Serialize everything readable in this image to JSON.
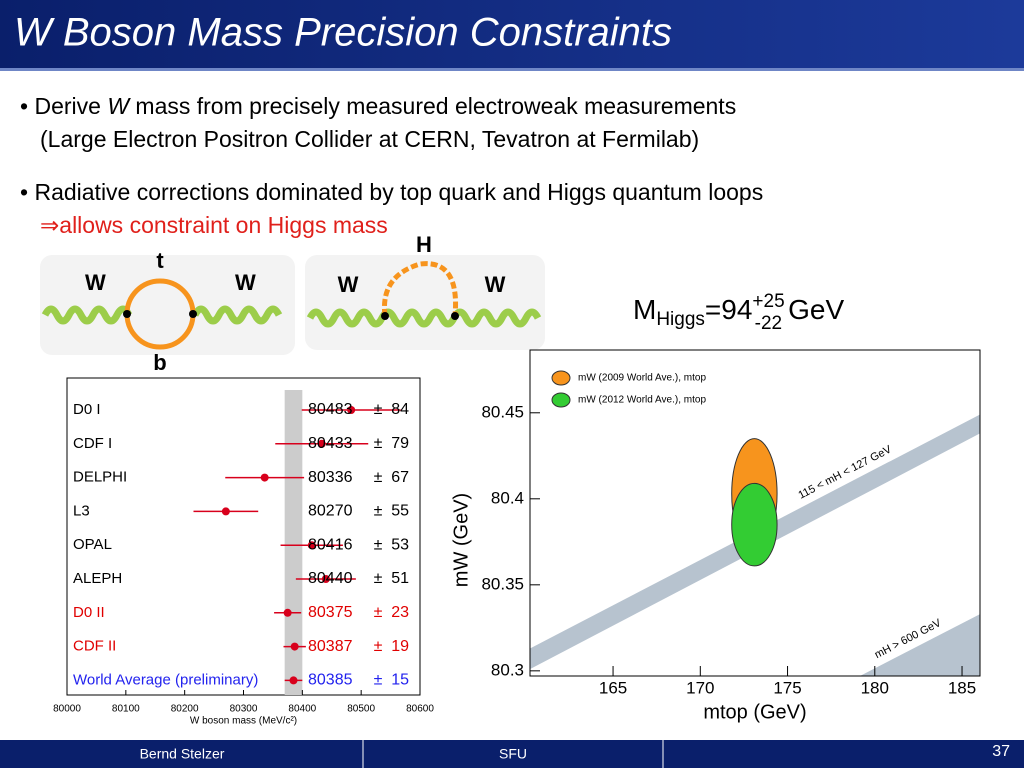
{
  "title": "W Boson Mass Precision Constraints",
  "bullets": [
    {
      "parts": [
        "Derive ",
        "W",
        " mass from precisely measured electroweak measurements"
      ],
      "line2": "(Large Electron Positron Collider at CERN, Tevatron at Fermilab)"
    },
    {
      "parts": [
        "Radiative corrections dominated by top quark and Higgs quantum loops"
      ],
      "line2": "⇒allows constraint on Higgs mass"
    }
  ],
  "diagrams": {
    "left": {
      "boson": "W",
      "top": "t",
      "bottom": "b"
    },
    "right": {
      "boson": "W",
      "loop": "H"
    }
  },
  "result": {
    "symbol": "M",
    "subscript": "Higgs",
    "equals": "=",
    "value": 94,
    "plus": "+25",
    "minus": "-22",
    "unit": "GeV"
  },
  "footer": {
    "author": "Bernd Stelzer",
    "institution": "SFU",
    "page": 37
  },
  "chart_data": [
    {
      "type": "errorbar",
      "categories": [
        "D0 I",
        "CDF I",
        "DELPHI",
        "L3",
        "OPAL",
        "ALEPH",
        "D0 II",
        "CDF II",
        "World Average (preliminary)"
      ],
      "values": [
        80483,
        80433,
        80336,
        80270,
        80416,
        80440,
        80375,
        80387,
        80385
      ],
      "errors": [
        84,
        79,
        67,
        55,
        53,
        51,
        23,
        19,
        15
      ],
      "separator": "±",
      "label_colors": [
        "#000000",
        "#000000",
        "#000000",
        "#000000",
        "#000000",
        "#000000",
        "#e00000",
        "#e00000",
        "#2222ee"
      ],
      "marker_color": "#d8001c",
      "xlim": [
        80000,
        80600
      ],
      "xticks": [
        80000,
        80100,
        80200,
        80300,
        80400,
        80500,
        80600
      ],
      "xlabel": "W boson mass (MeV/c²)"
    },
    {
      "type": "contour",
      "series": [
        {
          "name": "mW (2009 World Ave.), mtop",
          "color": "#f7941d",
          "x": 173.1,
          "y": 80.403,
          "x_radius": 1.3,
          "y_radius": 0.032
        },
        {
          "name": "mW (2012 World Ave.), mtop",
          "color": "#33cc33",
          "x": 173.1,
          "y": 80.385,
          "x_radius": 1.3,
          "y_radius": 0.024
        }
      ],
      "regions": [
        {
          "label": "115 < mH < 127 GeV",
          "x": [
            160.24,
            186.03
          ],
          "y_upper": [
            80.313,
            80.449
          ],
          "y_lower": [
            80.301,
            80.438
          ],
          "color": "#b7c3cf"
        },
        {
          "label": "mH > 600 GeV",
          "x": [
            179.15,
            186.03
          ],
          "y_upper": [
            80.297,
            80.333
          ],
          "color": "#b7c3cf"
        }
      ],
      "xlim": [
        160.24,
        186.03
      ],
      "ylim": [
        80.297,
        80.4865
      ],
      "xticks": [
        165,
        170,
        175,
        180,
        185
      ],
      "yticks": [
        {
          "value": 80.3,
          "label": "80.3"
        },
        80.35,
        {
          "value": 80.4,
          "label": "80.4"
        },
        80.45
      ],
      "xlabel": "mtop (GeV)",
      "ylabel": "mW (GeV)"
    }
  ]
}
